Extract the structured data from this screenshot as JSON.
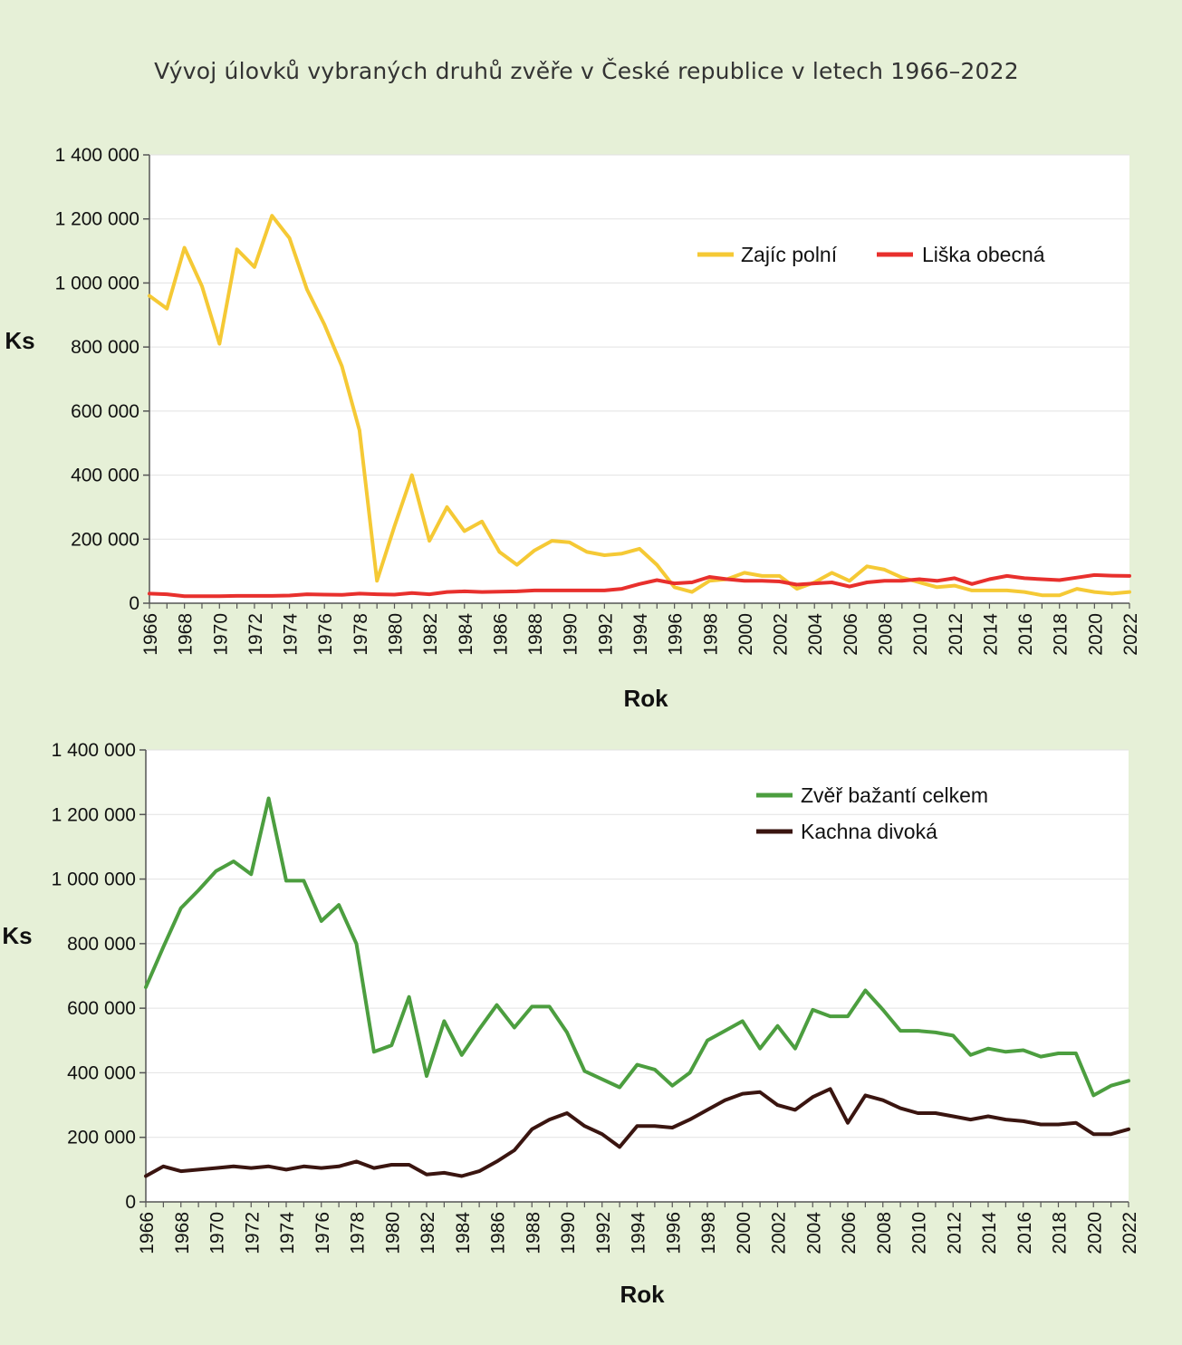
{
  "page": {
    "title": "Vývoj úlovků vybraných druhů zvěře v České republice v letech 1966–2022"
  },
  "chart_data": [
    {
      "type": "line",
      "ylabel": "Ks",
      "xlabel": "Rok",
      "ylim": [
        0,
        1400000
      ],
      "yticks": [
        0,
        200000,
        400000,
        600000,
        800000,
        1000000,
        1200000,
        1400000
      ],
      "ytick_labels": [
        "0",
        "200 000",
        "400 000",
        "600 000",
        "800 000",
        "1 000 000",
        "1 200 000",
        "1 400 000"
      ],
      "xlim": [
        1966,
        2022
      ],
      "xtick_labels": [
        "1966",
        "1968",
        "1970",
        "1972",
        "1974",
        "1976",
        "1978",
        "1980",
        "1982",
        "1984",
        "1986",
        "1988",
        "1990",
        "1992",
        "1994",
        "1996",
        "1998",
        "2000",
        "2002",
        "2004",
        "2006",
        "2008",
        "2010",
        "2012",
        "2014",
        "2016",
        "2018",
        "2020",
        "2022"
      ],
      "grid": true,
      "legend_position": "top-right",
      "x": [
        1966,
        1967,
        1968,
        1969,
        1970,
        1971,
        1972,
        1973,
        1974,
        1975,
        1976,
        1977,
        1978,
        1979,
        1980,
        1981,
        1982,
        1983,
        1984,
        1985,
        1986,
        1987,
        1988,
        1989,
        1990,
        1991,
        1992,
        1993,
        1994,
        1995,
        1996,
        1997,
        1998,
        1999,
        2000,
        2001,
        2002,
        2003,
        2004,
        2005,
        2006,
        2007,
        2008,
        2009,
        2010,
        2011,
        2012,
        2013,
        2014,
        2015,
        2016,
        2017,
        2018,
        2019,
        2020,
        2021,
        2022
      ],
      "series": [
        {
          "name": "Zajíc polní",
          "color": "#f5c935",
          "values": [
            960000,
            920000,
            1110000,
            990000,
            810000,
            1105000,
            1050000,
            1210000,
            1140000,
            980000,
            870000,
            740000,
            540000,
            70000,
            240000,
            400000,
            195000,
            300000,
            225000,
            255000,
            160000,
            120000,
            165000,
            195000,
            190000,
            160000,
            150000,
            155000,
            170000,
            120000,
            50000,
            35000,
            70000,
            75000,
            95000,
            85000,
            85000,
            45000,
            65000,
            95000,
            70000,
            115000,
            105000,
            80000,
            65000,
            50000,
            55000,
            40000,
            40000,
            40000,
            35000,
            25000,
            25000,
            45000,
            35000,
            30000,
            35000
          ]
        },
        {
          "name": "Liška obecná",
          "color": "#e8302d",
          "values": [
            30000,
            28000,
            22000,
            22000,
            22000,
            23000,
            23000,
            23000,
            24000,
            28000,
            27000,
            26000,
            30000,
            28000,
            27000,
            32000,
            28000,
            35000,
            37000,
            35000,
            36000,
            37000,
            40000,
            40000,
            40000,
            40000,
            40000,
            45000,
            60000,
            72000,
            62000,
            65000,
            82000,
            75000,
            70000,
            70000,
            68000,
            58000,
            62000,
            65000,
            52000,
            65000,
            70000,
            70000,
            75000,
            70000,
            78000,
            60000,
            75000,
            85000,
            78000,
            75000,
            72000,
            80000,
            88000,
            86000,
            85000
          ]
        }
      ]
    },
    {
      "type": "line",
      "ylabel": "Ks",
      "xlabel": "Rok",
      "ylim": [
        0,
        1400000
      ],
      "yticks": [
        0,
        200000,
        400000,
        600000,
        800000,
        1000000,
        1200000,
        1400000
      ],
      "ytick_labels": [
        "0",
        "200 000",
        "400 000",
        "600 000",
        "800 000",
        "1 000 000",
        "1 200 000",
        "1 400 000"
      ],
      "xlim": [
        1966,
        2022
      ],
      "xtick_labels": [
        "1966",
        "1968",
        "1970",
        "1972",
        "1974",
        "1976",
        "1978",
        "1980",
        "1982",
        "1984",
        "1986",
        "1988",
        "1990",
        "1992",
        "1994",
        "1996",
        "1998",
        "2000",
        "2002",
        "2004",
        "2006",
        "2008",
        "2010",
        "2012",
        "2014",
        "2016",
        "2018",
        "2020",
        "2022"
      ],
      "grid": true,
      "legend_position": "top-right",
      "x": [
        1966,
        1967,
        1968,
        1969,
        1970,
        1971,
        1972,
        1973,
        1974,
        1975,
        1976,
        1977,
        1978,
        1979,
        1980,
        1981,
        1982,
        1983,
        1984,
        1985,
        1986,
        1987,
        1988,
        1989,
        1990,
        1991,
        1992,
        1993,
        1994,
        1995,
        1996,
        1997,
        1998,
        1999,
        2000,
        2001,
        2002,
        2003,
        2004,
        2005,
        2006,
        2007,
        2008,
        2009,
        2010,
        2011,
        2012,
        2013,
        2014,
        2015,
        2016,
        2017,
        2018,
        2019,
        2020,
        2021,
        2022
      ],
      "series": [
        {
          "name": "Zvěř bažantí celkem",
          "color": "#4c9e3f",
          "values": [
            665000,
            790000,
            910000,
            965000,
            1025000,
            1055000,
            1015000,
            1250000,
            995000,
            995000,
            870000,
            920000,
            800000,
            465000,
            485000,
            635000,
            390000,
            560000,
            455000,
            535000,
            610000,
            540000,
            605000,
            605000,
            525000,
            405000,
            380000,
            355000,
            425000,
            410000,
            360000,
            400000,
            500000,
            530000,
            560000,
            475000,
            545000,
            475000,
            595000,
            575000,
            575000,
            655000,
            595000,
            530000,
            530000,
            525000,
            515000,
            455000,
            475000,
            465000,
            470000,
            450000,
            460000,
            460000,
            330000,
            360000,
            375000
          ]
        },
        {
          "name": "Kachna divoká",
          "color": "#3a1510",
          "values": [
            80000,
            110000,
            95000,
            100000,
            105000,
            110000,
            105000,
            110000,
            100000,
            110000,
            105000,
            110000,
            125000,
            105000,
            115000,
            115000,
            85000,
            90000,
            80000,
            95000,
            125000,
            160000,
            225000,
            255000,
            275000,
            235000,
            210000,
            170000,
            235000,
            235000,
            230000,
            255000,
            285000,
            315000,
            335000,
            340000,
            300000,
            285000,
            325000,
            350000,
            245000,
            330000,
            315000,
            290000,
            275000,
            275000,
            265000,
            255000,
            265000,
            255000,
            250000,
            240000,
            240000,
            245000,
            210000,
            210000,
            225000
          ]
        }
      ]
    }
  ]
}
